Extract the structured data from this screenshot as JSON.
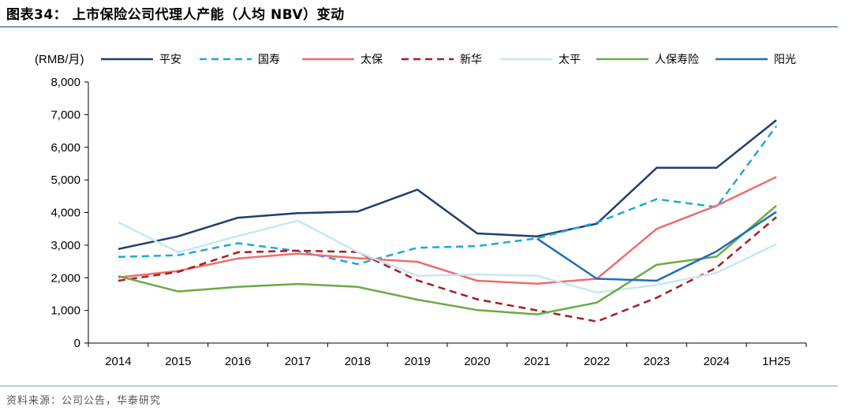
{
  "figure": {
    "title": "图表34：  上市保险公司代理人产能（人均 NBV）变动",
    "source": "资料来源：公司公告，华泰研究"
  },
  "chart_data": {
    "type": "line",
    "unit_label": "(RMB/月)",
    "categories": [
      "2014",
      "2015",
      "2016",
      "2017",
      "2018",
      "2019",
      "2020",
      "2021",
      "2022",
      "2023",
      "2024",
      "1H25"
    ],
    "ylim": [
      0,
      8000
    ],
    "yticks": [
      0,
      1000,
      2000,
      3000,
      4000,
      5000,
      6000,
      7000,
      8000
    ],
    "ytick_labels": [
      "0",
      "1,000",
      "2,000",
      "3,000",
      "4,000",
      "5,000",
      "6,000",
      "7,000",
      "8,000"
    ],
    "grid": false,
    "legend_position": "top",
    "series": [
      {
        "name": "平安",
        "color": "#1f3f6e",
        "dash": "solid",
        "values": [
          2880,
          3270,
          3840,
          3980,
          4030,
          4700,
          3360,
          3270,
          3660,
          5370,
          5370,
          6830
        ]
      },
      {
        "name": "国寿",
        "color": "#1fa7d9",
        "dash": "dashed",
        "values": [
          2640,
          2690,
          3060,
          2820,
          2420,
          2920,
          2970,
          3210,
          3690,
          4410,
          4170,
          6650
        ]
      },
      {
        "name": "太保",
        "color": "#ef6d6d",
        "dash": "solid",
        "values": [
          2010,
          2210,
          2590,
          2740,
          2600,
          2490,
          1910,
          1820,
          1970,
          3500,
          4210,
          5090
        ]
      },
      {
        "name": "新华",
        "color": "#a51e22",
        "dash": "dashed",
        "values": [
          1910,
          2180,
          2780,
          2830,
          2790,
          1920,
          1340,
          1000,
          660,
          1390,
          2310,
          3860
        ]
      },
      {
        "name": "太平",
        "color": "#c7e6f5",
        "dash": "solid",
        "values": [
          3700,
          2780,
          3280,
          3750,
          2790,
          2060,
          2100,
          2060,
          1550,
          1780,
          2150,
          3030
        ]
      },
      {
        "name": "人保寿险",
        "color": "#6aaa46",
        "dash": "solid",
        "values": [
          2050,
          1580,
          1720,
          1810,
          1720,
          1330,
          1010,
          880,
          1240,
          2400,
          2650,
          4210
        ]
      },
      {
        "name": "阳光",
        "color": "#1f6fb5",
        "dash": "solid",
        "values": [
          null,
          null,
          null,
          null,
          null,
          null,
          null,
          3200,
          1970,
          1910,
          2810,
          4020
        ]
      }
    ]
  }
}
